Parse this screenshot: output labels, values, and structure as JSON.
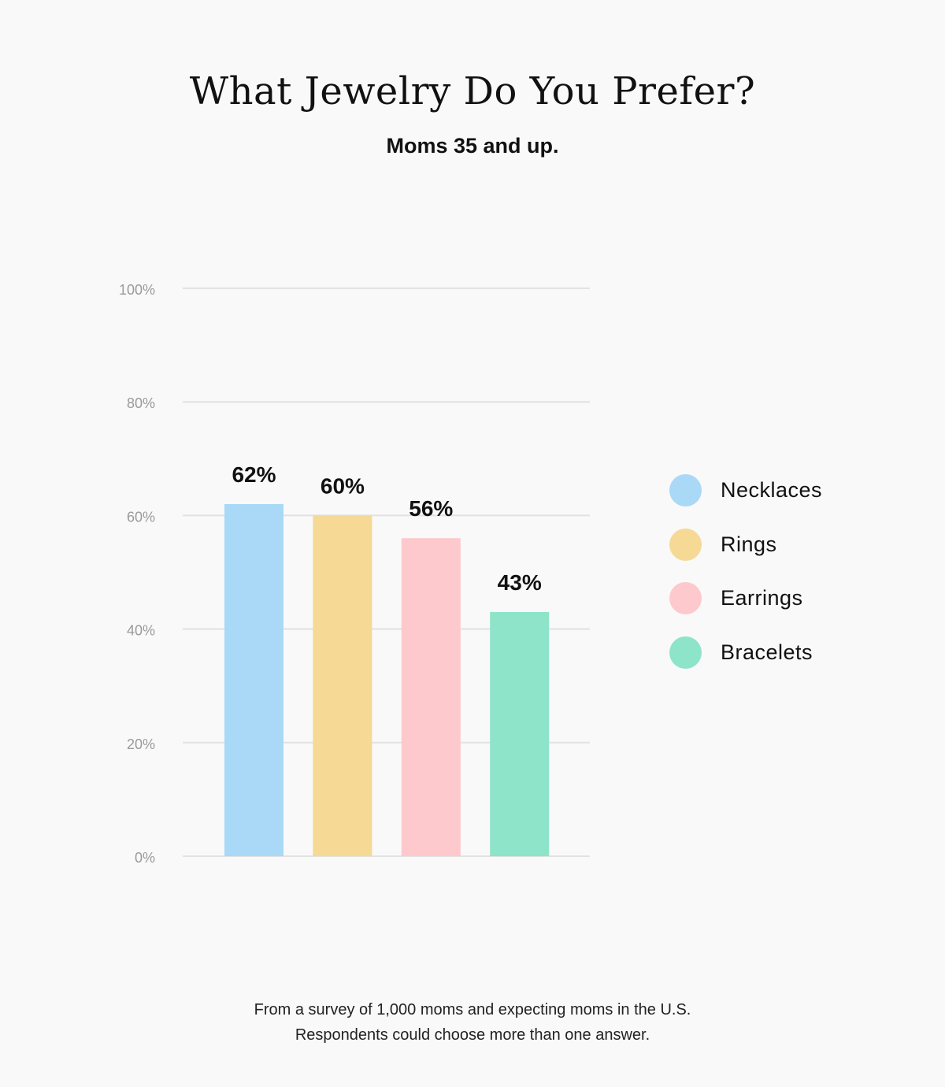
{
  "header": {
    "title": "What Jewelry Do You Prefer?",
    "subtitle": "Moms 35 and up."
  },
  "chart_data": {
    "type": "bar",
    "title": "What Jewelry Do You Prefer?",
    "subtitle": "Moms 35 and up.",
    "categories": [
      "Necklaces",
      "Rings",
      "Earrings",
      "Bracelets"
    ],
    "values": [
      62,
      60,
      56,
      43
    ],
    "value_labels": [
      "62%",
      "60%",
      "56%",
      "43%"
    ],
    "colors": [
      "#a9d9f7",
      "#f5d995",
      "#fdc9cc",
      "#8ee4c8"
    ],
    "ylim": [
      0,
      100
    ],
    "yticks": [
      0,
      20,
      40,
      60,
      80,
      100
    ],
    "ytick_labels": [
      "0%",
      "20%",
      "40%",
      "60%",
      "80%",
      "100%"
    ],
    "grid": true,
    "legend_position": "right",
    "xlabel": "",
    "ylabel": ""
  },
  "legend": {
    "items": [
      {
        "label": "Necklaces",
        "color": "#a9d9f7"
      },
      {
        "label": "Rings",
        "color": "#f5d995"
      },
      {
        "label": "Earrings",
        "color": "#fdc9cc"
      },
      {
        "label": "Bracelets",
        "color": "#8ee4c8"
      }
    ]
  },
  "footnote": {
    "line1": "From a survey of 1,000 moms and expecting moms in the U.S.",
    "line2": "Respondents could choose more than one answer."
  },
  "colors": {
    "background": "#f9f9f9",
    "gridline": "#e2e2e2",
    "tick_text": "#9a9a9a",
    "text": "#111111"
  }
}
